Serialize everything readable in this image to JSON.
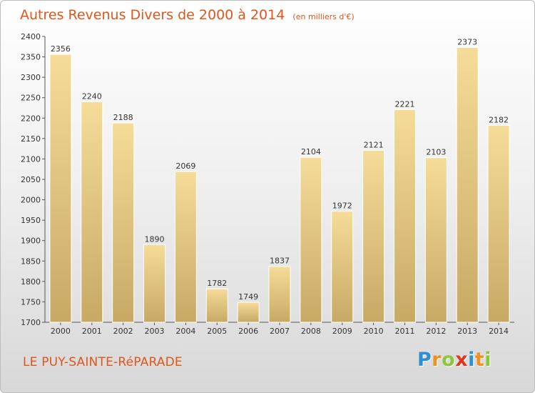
{
  "chart_data": {
    "type": "bar",
    "title": "Autres Revenus Divers de 2000 à 2014",
    "unit_note": "(en milliers d'€)",
    "categories": [
      "2000",
      "2001",
      "2002",
      "2003",
      "2004",
      "2005",
      "2006",
      "2007",
      "2008",
      "2009",
      "2010",
      "2011",
      "2012",
      "2013",
      "2014"
    ],
    "values": [
      2356,
      2240,
      2188,
      1890,
      2069,
      1782,
      1749,
      1837,
      2104,
      1972,
      2121,
      2221,
      2103,
      2373,
      2182
    ],
    "ylim": [
      1700,
      2400
    ],
    "yticks": [
      1700,
      1750,
      1800,
      1850,
      1900,
      1950,
      2000,
      2050,
      2100,
      2150,
      2200,
      2250,
      2300,
      2350,
      2400
    ],
    "grid": false,
    "colors": {
      "bar_top": "#f5dc98",
      "bar_bottom": "#c7a964",
      "title": "#e0561a",
      "axis": "#555555"
    }
  },
  "location": "LE PUY-SAINTE-RéPARADE",
  "brand": {
    "text": "Proxiti",
    "letter_colors": [
      "#2d8fd4",
      "#f0901e",
      "#8cc63f",
      "#e0341c",
      "#2d8fd4",
      "#f0901e",
      "#8cc63f"
    ]
  }
}
